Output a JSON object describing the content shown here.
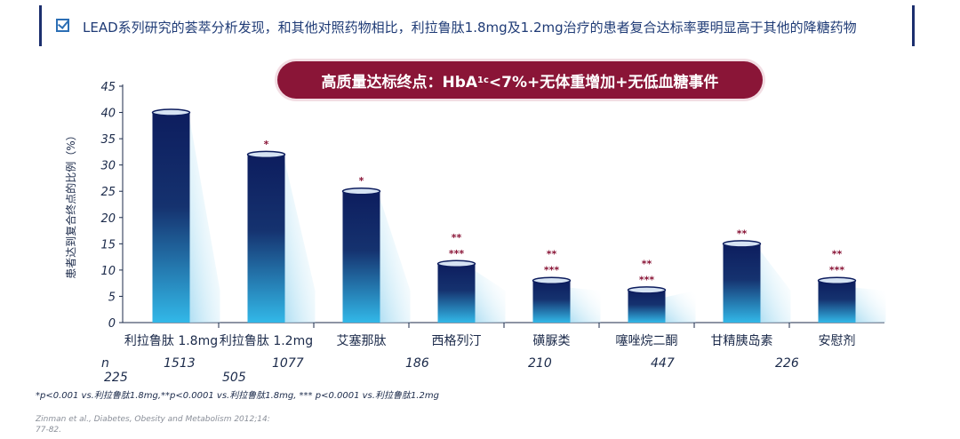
{
  "header": {
    "text": "LEAD系列研究的荟萃分析发现，和其他对照药物相比，利拉鲁肽1.8mg及1.2mg治疗的患者复合达标率要明显高于其他的降糖药物"
  },
  "banner": {
    "prefix": "高质量达标终点：HbA",
    "sub": "1c",
    "suffix": "<7%+无体重增加+无低血糖事件"
  },
  "chart_data": {
    "type": "bar",
    "ylabel": "患者达到复合终点的比例（%）",
    "ylim": [
      0,
      45
    ],
    "yticks": [
      0,
      5,
      10,
      15,
      20,
      25,
      30,
      35,
      40,
      45
    ],
    "categories": [
      "利拉鲁肽 1.8mg",
      "利拉鲁肽 1.2mg",
      "艾塞那肽",
      "西格列汀",
      "磺脲类",
      "噻唑烷二酮",
      "甘精胰岛素",
      "安慰剂"
    ],
    "values": [
      40,
      32,
      25,
      11.2,
      8,
      6.2,
      15,
      8
    ],
    "annotations": [
      [],
      [
        "*"
      ],
      [
        "*"
      ],
      [
        "**",
        "***"
      ],
      [
        "**",
        "***"
      ],
      [
        "**",
        "***"
      ],
      [
        "**"
      ],
      [
        "**",
        "***"
      ]
    ],
    "colors": {
      "top": "#0d1d5e",
      "bottom": "#32b8e8",
      "annotation": "#8a1537",
      "axis": "#1b2a4a"
    }
  },
  "n_row": {
    "label": "n",
    "values": [
      "225",
      "1513",
      "505",
      "1077",
      "186",
      "210",
      "447",
      "226"
    ]
  },
  "footnote": "*p<0.001 vs.利拉鲁肽1.8mg,**p<0.0001 vs.利拉鲁肽1.8mg, *** p<0.0001 vs.利拉鲁肽1.2mg",
  "citation": {
    "line1": "Zinman et al., Diabetes, Obesity and Metabolism 2012;14:",
    "line2": "77-82."
  }
}
